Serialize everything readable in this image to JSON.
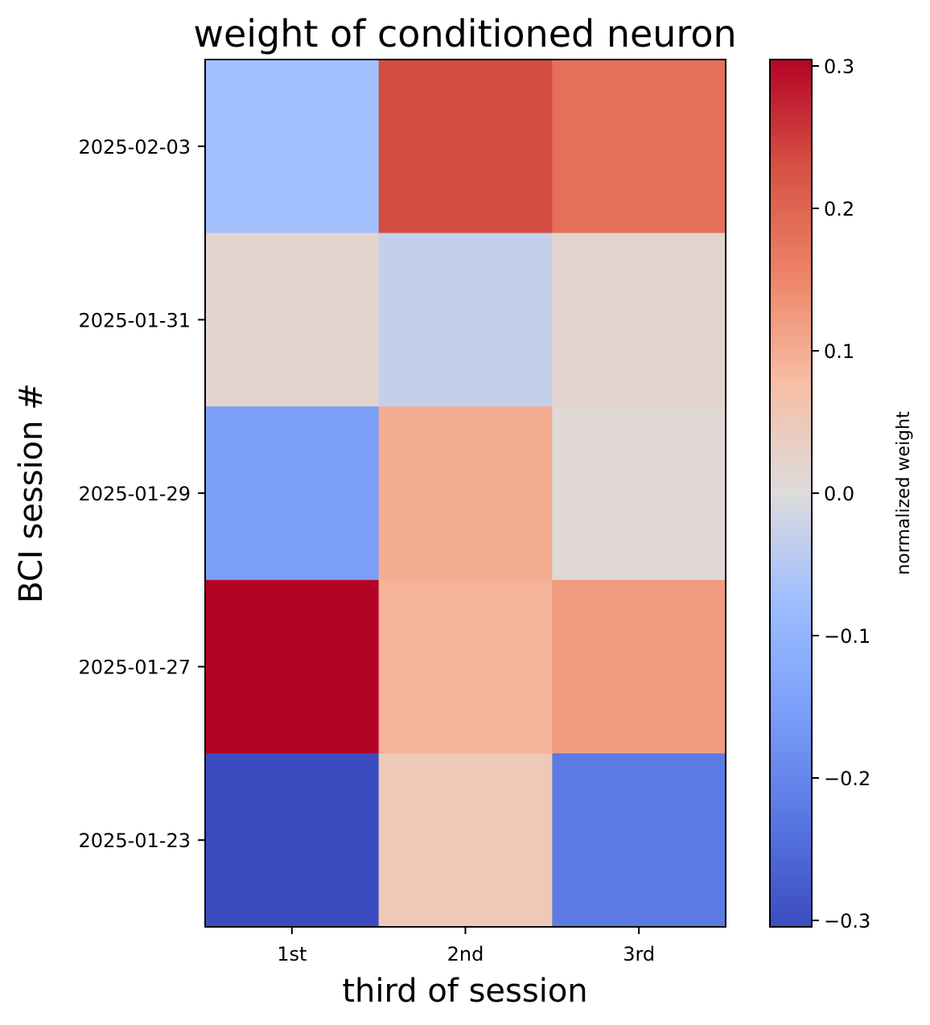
{
  "chart_data": {
    "type": "heatmap",
    "title": "weight of conditioned neuron",
    "xlabel": "third of session",
    "ylabel": "BCI session #",
    "x_categories": [
      "1st",
      "2nd",
      "3rd"
    ],
    "y_categories": [
      "2025-02-03",
      "2025-01-31",
      "2025-01-29",
      "2025-01-27",
      "2025-01-23"
    ],
    "values": [
      [
        -0.07,
        0.23,
        0.18
      ],
      [
        0.02,
        -0.03,
        0.02
      ],
      [
        -0.15,
        0.1,
        0.01
      ],
      [
        0.3,
        0.09,
        0.12
      ],
      [
        -0.3,
        0.05,
        -0.22
      ]
    ],
    "colormap": "coolwarm",
    "vmin": -0.3,
    "vmax": 0.3,
    "colorbar": {
      "label": "normalized weight",
      "ticks": [
        0.3,
        0.2,
        0.1,
        0.0,
        -0.1,
        -0.2,
        -0.3
      ],
      "tick_labels": [
        "0.3",
        "0.2",
        "0.1",
        "0.0",
        "−0.1",
        "−0.2",
        "−0.3"
      ]
    }
  }
}
